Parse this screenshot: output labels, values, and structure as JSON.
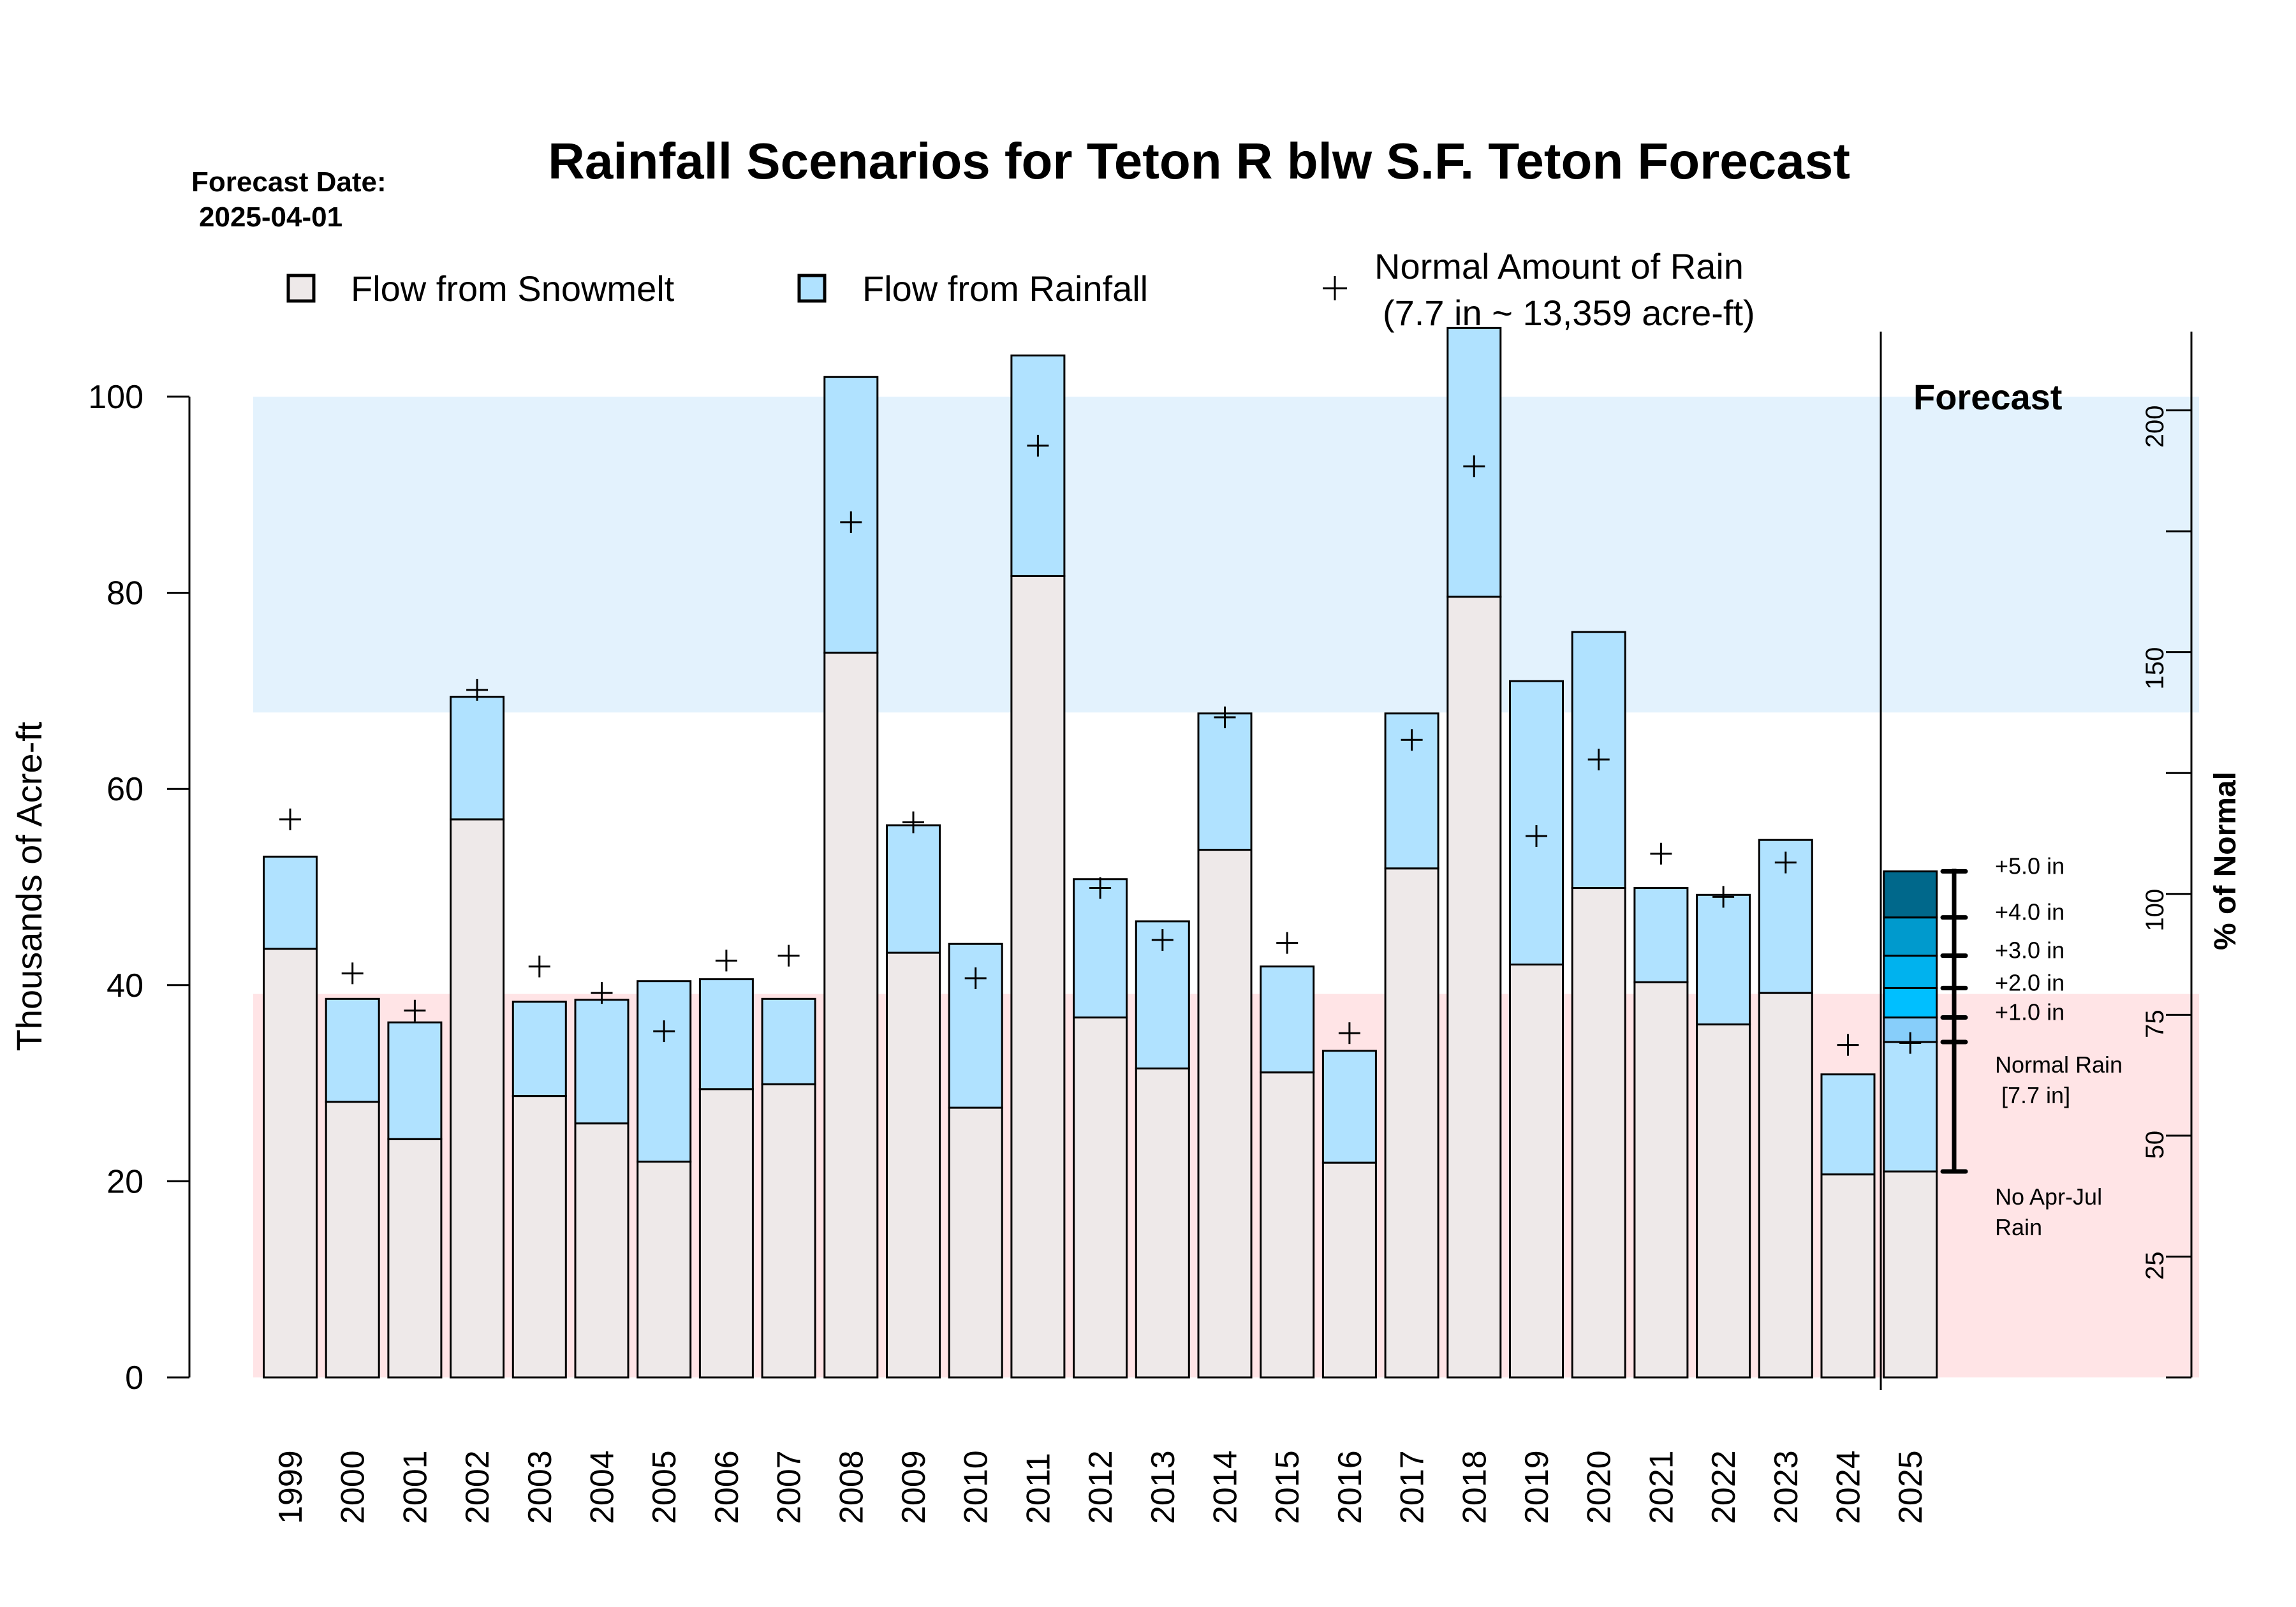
{
  "chart_data": {
    "type": "bar",
    "stacked": true,
    "title": "Rainfall Scenarios for Teton R blw S.F. Teton Forecast",
    "forecast_date_label": "Forecast Date:",
    "forecast_date": "2025-04-01",
    "ylabel": "Thousands of Acre-ft",
    "ylabel_right": "% of Normal",
    "ylim": [
      0,
      107
    ],
    "yticks": [
      0,
      20,
      40,
      60,
      80,
      100
    ],
    "right_axis": {
      "normal_value": 49.3,
      "ticks": [
        25,
        50,
        75,
        100,
        125,
        150,
        175,
        200
      ],
      "labeled_ticks": [
        25,
        50,
        75,
        100,
        150,
        200
      ]
    },
    "bands": [
      {
        "name": "above-normal-band",
        "from": 67.8,
        "to": 100,
        "color": "#E3F2FD"
      },
      {
        "name": "below-normal-band",
        "from": 0,
        "to": 39.1,
        "color": "#FFE4E6"
      }
    ],
    "legend": [
      {
        "label": "Flow from Snowmelt",
        "color": "#EEE9E9",
        "symbol": "box"
      },
      {
        "label": "Flow from Rainfall",
        "color": "#B0E2FF",
        "symbol": "box"
      },
      {
        "label": "Normal Amount of Rain",
        "sublabel": "(7.7 in ~ 13,359 acre-ft)",
        "symbol": "plus"
      }
    ],
    "colors": {
      "snowmelt": "#EEE9E9",
      "rainfall": "#B0E2FF",
      "scenario_1": "#87CEFA",
      "scenario_2": "#00BFFF",
      "scenario_3": "#00B2EE",
      "scenario_4": "#009ACD",
      "scenario_5": "#00688B"
    },
    "categories": [
      "1999",
      "2000",
      "2001",
      "2002",
      "2003",
      "2004",
      "2005",
      "2006",
      "2007",
      "2008",
      "2009",
      "2010",
      "2011",
      "2012",
      "2013",
      "2014",
      "2015",
      "2016",
      "2017",
      "2018",
      "2019",
      "2020",
      "2021",
      "2022",
      "2023",
      "2024",
      "2025"
    ],
    "series": [
      {
        "name": "Flow from Snowmelt",
        "values": [
          43.7,
          28.1,
          24.3,
          56.9,
          28.7,
          25.9,
          22.0,
          29.4,
          29.9,
          73.9,
          43.3,
          27.5,
          81.7,
          36.7,
          31.5,
          53.8,
          31.1,
          21.9,
          51.9,
          79.6,
          42.1,
          49.9,
          40.3,
          36.0,
          39.2,
          20.7,
          21.0
        ]
      },
      {
        "name": "Flow from Rainfall",
        "values": [
          9.4,
          10.5,
          11.9,
          12.5,
          9.6,
          12.6,
          18.4,
          11.2,
          8.7,
          28.1,
          13.0,
          16.7,
          22.5,
          14.1,
          15.0,
          13.9,
          10.8,
          11.4,
          15.8,
          27.4,
          28.9,
          26.1,
          9.6,
          13.2,
          15.6,
          10.2,
          13.2
        ]
      },
      {
        "name": "Normal Amount of Rain",
        "type": "marker",
        "values": [
          56.9,
          41.2,
          37.4,
          70.1,
          41.9,
          39.2,
          35.3,
          42.5,
          43.0,
          87.2,
          56.6,
          40.7,
          95.0,
          49.9,
          44.6,
          67.3,
          44.3,
          35.1,
          65.0,
          92.9,
          55.2,
          63.0,
          53.4,
          49.0,
          52.5,
          33.9,
          34.1
        ]
      }
    ],
    "forecast": {
      "label": "Forecast",
      "year": "2025",
      "no_rain_value": 21.0,
      "normal_rain_value": 34.2,
      "scenarios": [
        {
          "label": "+1.0 in",
          "value": 36.7
        },
        {
          "label": "+2.0 in",
          "value": 39.7
        },
        {
          "label": "+3.0 in",
          "value": 43.0
        },
        {
          "label": "+4.0 in",
          "value": 46.9
        },
        {
          "label": "+5.0 in",
          "value": 51.6
        }
      ],
      "normal_label": "Normal Rain",
      "normal_sublabel": "[7.7 in]",
      "no_rain_label": "No Apr-Jul",
      "no_rain_sublabel": "Rain"
    }
  }
}
